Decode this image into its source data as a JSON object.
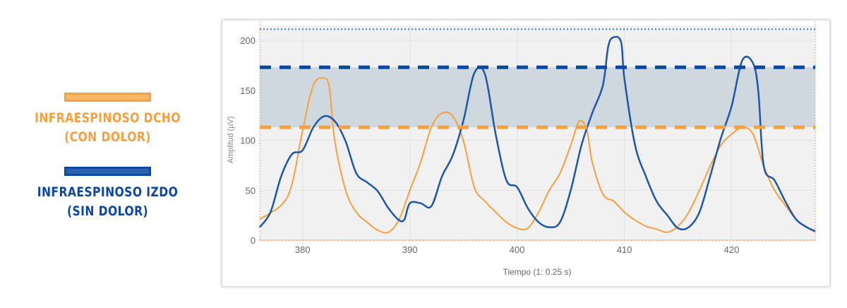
{
  "legend": [
    {
      "label_line1": "INFRAESPINOSO DCHO",
      "label_line2": "(CON DOLOR)",
      "color": "#f7a040"
    },
    {
      "label_line1": "INFRAESPINOSO IZDO",
      "label_line2": "(SIN DOLOR)",
      "color": "#0d47a1"
    }
  ],
  "chart_data": {
    "type": "line",
    "title": "",
    "xlabel": "Tiempo (1: 0.25 s)",
    "ylabel": "Amplitud (µV)",
    "xlim": [
      376,
      427.8
    ],
    "ylim": [
      0,
      215
    ],
    "xticks": [
      380,
      390,
      400,
      410,
      420
    ],
    "yticks": [
      0,
      50,
      100,
      150,
      200
    ],
    "grid": true,
    "reference_lines": [
      {
        "name": "max-dotted",
        "y": 211,
        "style": "dotted",
        "color": "#3a7fd5"
      },
      {
        "name": "blue-threshold",
        "y": 173,
        "style": "dashed",
        "color": "#0d47a1"
      },
      {
        "name": "orange-threshold",
        "y": 113,
        "style": "dashed",
        "color": "#f7a040"
      }
    ],
    "band": {
      "y0": 113,
      "y1": 173,
      "color": "#c9d3db"
    },
    "series": [
      {
        "name": "Infraespinoso dcho (con dolor)",
        "color": "#f7a040",
        "x": [
          376,
          378,
          379,
          380,
          381,
          382,
          382.5,
          383,
          384,
          385,
          386,
          387,
          388,
          389,
          390,
          391,
          392,
          393,
          394,
          395,
          396,
          397,
          398,
          399,
          400,
          401,
          402,
          403,
          404,
          405,
          405.8,
          406.5,
          407,
          408,
          409,
          410,
          411,
          412,
          413,
          414,
          415,
          416,
          417,
          418,
          419,
          420,
          421,
          422,
          423,
          424,
          425,
          426,
          427,
          427.8
        ],
        "y": [
          21,
          35,
          56,
          110,
          155,
          162,
          152,
          99,
          50,
          28,
          18,
          10,
          8,
          21,
          50,
          78,
          113,
          127,
          124,
          99,
          53,
          39,
          28,
          18,
          12,
          12,
          28,
          50,
          67,
          95,
          119,
          110,
          78,
          46,
          39,
          28,
          20,
          14,
          11,
          8,
          14,
          28,
          50,
          74,
          95,
          106,
          113,
          106,
          74,
          50,
          35,
          21,
          13,
          8
        ]
      },
      {
        "name": "Infraespinoso izdo (sin dolor)",
        "color": "#1f57a8",
        "x": [
          376,
          377,
          378,
          379,
          380,
          381,
          382,
          383,
          384,
          385,
          386,
          387,
          388,
          389,
          389.5,
          390,
          391,
          392,
          393,
          394,
          395,
          396,
          397,
          398,
          399,
          400,
          401,
          402,
          403,
          404,
          405,
          406,
          407,
          408,
          408.5,
          409,
          409.7,
          410,
          411,
          412,
          413,
          414,
          415,
          416,
          417,
          418,
          419,
          420,
          421,
          422,
          422.5,
          423,
          424,
          425,
          426,
          427,
          427.8
        ],
        "y": [
          13,
          28,
          64,
          86,
          90,
          113,
          124,
          119,
          99,
          67,
          58,
          49,
          32,
          20,
          21,
          37,
          37,
          34,
          64,
          85,
          120,
          167,
          166,
          106,
          60,
          53,
          32,
          18,
          13,
          18,
          50,
          95,
          127,
          155,
          194,
          203,
          198,
          162,
          95,
          64,
          39,
          25,
          12,
          13,
          28,
          64,
          102,
          134,
          180,
          177,
          148,
          74,
          60,
          39,
          21,
          13,
          9
        ]
      }
    ]
  }
}
